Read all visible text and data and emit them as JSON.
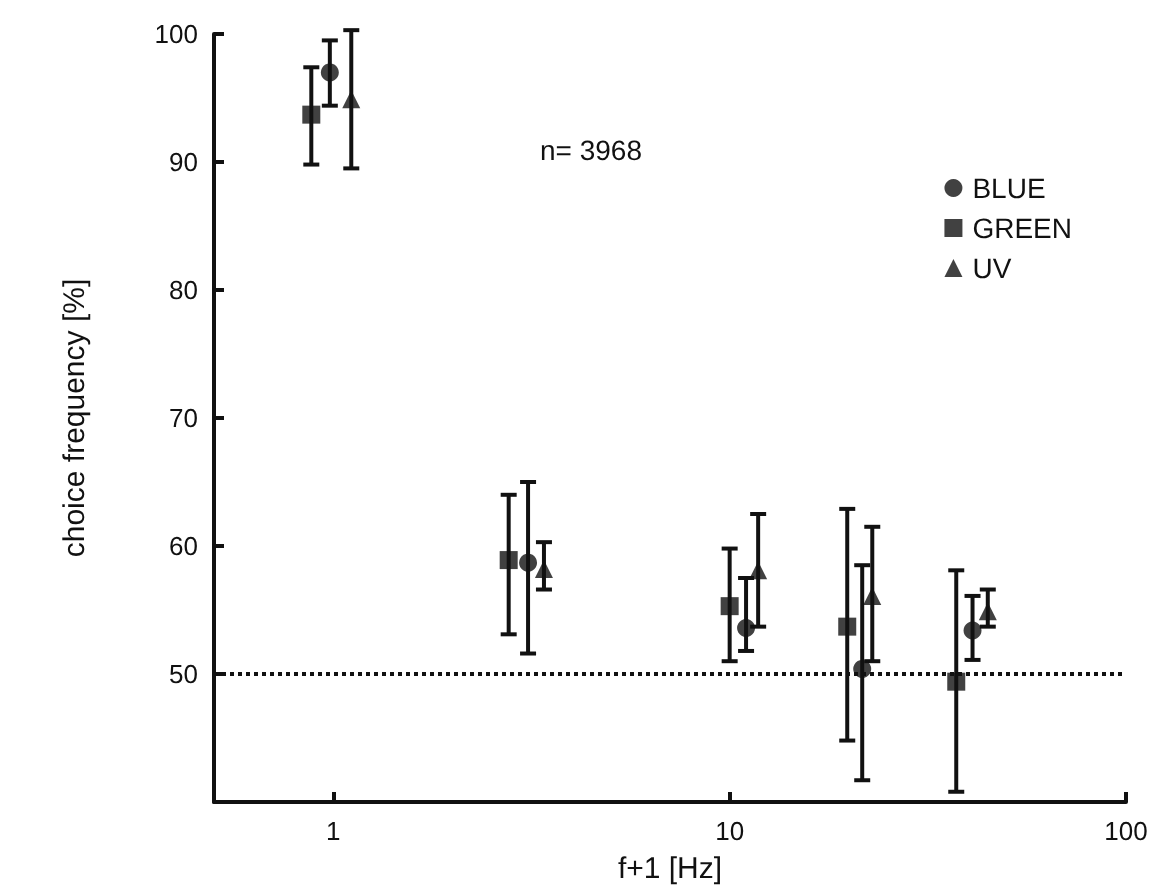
{
  "chart_data": {
    "type": "scatter",
    "xlabel": "f+1 [Hz]",
    "ylabel": "choice frequency [%]",
    "annotations": [
      "n= 3968"
    ],
    "log": "x",
    "xlim": [
      0.5,
      100
    ],
    "xticks": [
      1,
      10,
      100
    ],
    "ylim": [
      40,
      100
    ],
    "yticks": [
      50,
      60,
      70,
      80,
      90,
      100
    ],
    "grid": false,
    "legend": "top right",
    "ref_lines": [
      {
        "axis": "y",
        "value": 50,
        "line_style": "dotted",
        "color": "#111111"
      }
    ],
    "series": [
      {
        "name": "BLUE",
        "color": "#111111",
        "marker": "circle",
        "x": [
          0.98,
          3.1,
          11,
          21.6,
          41
        ],
        "values": [
          97,
          58.7,
          53.6,
          50.4,
          53.4
        ],
        "errors": [
          [
            94.4,
            99.5
          ],
          [
            51.6,
            65
          ],
          [
            51.8,
            57.5
          ],
          [
            41.7,
            58.5
          ],
          [
            51.1,
            56.1
          ]
        ]
      },
      {
        "name": "GREEN",
        "color": "#111111",
        "marker": "square",
        "x": [
          0.88,
          2.77,
          10,
          19.8,
          37.3
        ],
        "values": [
          93.7,
          58.9,
          55.3,
          53.7,
          49.4
        ],
        "errors": [
          [
            89.8,
            97.4
          ],
          [
            53.1,
            64
          ],
          [
            51,
            59.8
          ],
          [
            44.8,
            62.9
          ],
          [
            40.8,
            58.1
          ]
        ]
      },
      {
        "name": "UV",
        "color": "#111111",
        "marker": "triangle",
        "x": [
          1.11,
          3.4,
          11.8,
          22.9,
          44.8
        ],
        "values": [
          94.9,
          58.2,
          58.1,
          56.1,
          54.9
        ],
        "errors": [
          [
            89.5,
            100.3
          ],
          [
            56.6,
            60.3
          ],
          [
            53.7,
            62.5
          ],
          [
            51,
            61.5
          ],
          [
            53.7,
            56.6
          ]
        ]
      }
    ]
  }
}
